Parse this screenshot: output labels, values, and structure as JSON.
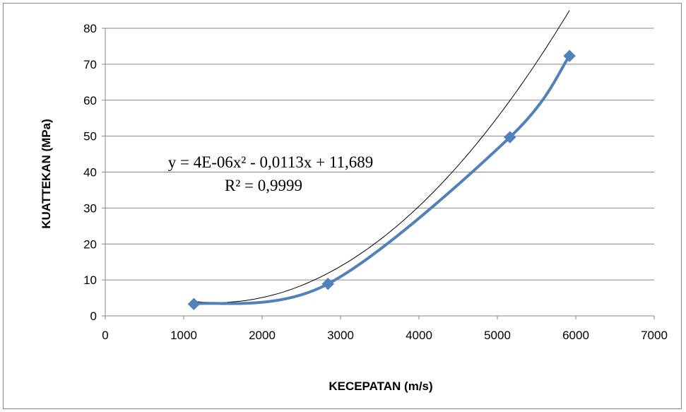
{
  "chart_data": {
    "type": "scatter",
    "title": "",
    "xlabel": "KECEPATAN (m/s)",
    "ylabel": "KUATTEKAN (MPa)",
    "xlim": [
      0,
      7000
    ],
    "ylim": [
      0,
      80
    ],
    "xticks": [
      0,
      1000,
      2000,
      3000,
      4000,
      5000,
      6000,
      7000
    ],
    "yticks": [
      0,
      10,
      20,
      30,
      40,
      50,
      60,
      70,
      80
    ],
    "grid": "horizontal",
    "legend": "none",
    "series": [
      {
        "points": [
          {
            "x": 1130,
            "y": 3.3
          },
          {
            "x": 2840,
            "y": 8.9
          },
          {
            "x": 5160,
            "y": 49.7
          },
          {
            "x": 5920,
            "y": 72.3
          }
        ],
        "line": "smoothed",
        "marker": "diamond",
        "color": "#4f81bd"
      }
    ],
    "trendline": {
      "type": "polynomial-2",
      "coefficients": [
        4e-06,
        -0.0113,
        11.689
      ],
      "color": "#000000",
      "equation_text": "y = 4E-06x² - 0,0113x + 11,689",
      "r2_text": "R² = 0,9999"
    }
  }
}
